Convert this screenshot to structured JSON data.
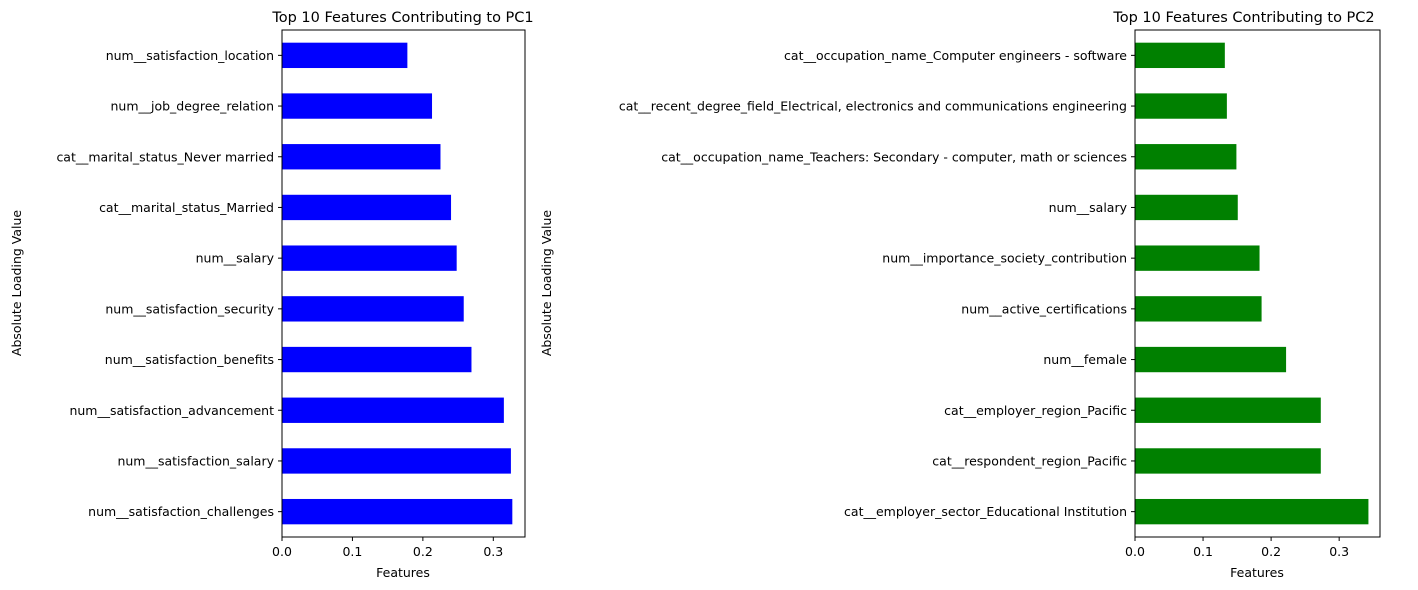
{
  "chart_data": [
    {
      "type": "bar",
      "orientation": "horizontal",
      "title": "Top 10 Features Contributing to PC1",
      "xlabel": "Features",
      "ylabel": "Absolute Loading Value",
      "xlim": [
        0,
        0.345
      ],
      "xticks": [
        "0.0",
        "0.1",
        "0.2",
        "0.3"
      ],
      "grid": false,
      "color": "#0000ff",
      "categories": [
        "num__satisfaction_challenges",
        "num__satisfaction_salary",
        "num__satisfaction_advancement",
        "num__satisfaction_benefits",
        "num__satisfaction_security",
        "num__salary",
        "cat__marital_status_Married",
        "cat__marital_status_Never married",
        "num__job_degree_relation",
        "num__satisfaction_location"
      ],
      "values": [
        0.327,
        0.325,
        0.315,
        0.269,
        0.258,
        0.248,
        0.24,
        0.225,
        0.213,
        0.178
      ]
    },
    {
      "type": "bar",
      "orientation": "horizontal",
      "title": "Top 10 Features Contributing to PC2",
      "xlabel": "Features",
      "ylabel": "Absolute Loading Value",
      "xlim": [
        0,
        0.36
      ],
      "xticks": [
        "0.0",
        "0.1",
        "0.2",
        "0.3"
      ],
      "grid": false,
      "color": "#008000",
      "categories": [
        "cat__employer_sector_Educational Institution",
        "cat__respondent_region_Pacific",
        "cat__employer_region_Pacific",
        "num__female",
        "num__active_certifications",
        "num__importance_society_contribution",
        "num__salary",
        "cat__occupation_name_Teachers: Secondary - computer, math or sciences",
        "cat__recent_degree_field_Electrical, electronics and communications engineering",
        "cat__occupation_name_Computer engineers - software"
      ],
      "values": [
        0.343,
        0.273,
        0.273,
        0.222,
        0.186,
        0.183,
        0.151,
        0.149,
        0.135,
        0.132
      ]
    }
  ]
}
